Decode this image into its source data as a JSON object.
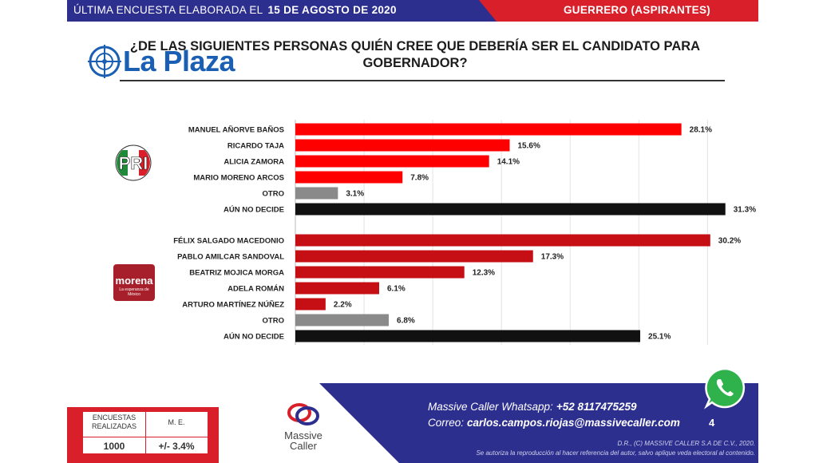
{
  "header": {
    "prefix": "ÚLTIMA ENCUESTA ELABORADA EL",
    "date": "15 DE AGOSTO DE 2020",
    "region": "GUERRERO (ASPIRANTES)"
  },
  "question": "¿DE LAS SIGUIENTES PERSONAS QUIÉN CREE QUE DEBERÍA SER EL CANDIDATO PARA GOBERNADOR?",
  "watermark": "La Plaza",
  "colors": {
    "pri": "#ff0000",
    "morena": "#c50f14",
    "otro": "#8a8a8a",
    "undecided": "#111111"
  },
  "chart_data": [
    {
      "type": "bar",
      "orientation": "horizontal",
      "party": "PRI",
      "categories": [
        "MANUEL AÑORVE BAÑOS",
        "RICARDO TAJA",
        "ALICIA ZAMORA",
        "MARIO MORENO ARCOS",
        "OTRO",
        "AÚN NO DECIDE"
      ],
      "values": [
        28.1,
        15.6,
        14.1,
        7.8,
        3.1,
        31.3
      ],
      "labels": [
        "28.1%",
        "15.6%",
        "14.1%",
        "7.8%",
        "3.1%",
        "31.3%"
      ],
      "bar_colors": [
        "#ff0000",
        "#ff0000",
        "#ff0000",
        "#ff0000",
        "#8a8a8a",
        "#111111"
      ],
      "xlim": [
        0,
        33
      ],
      "grid": true
    },
    {
      "type": "bar",
      "orientation": "horizontal",
      "party": "morena",
      "categories": [
        "FÉLIX SALGADO MACEDONIO",
        "PABLO AMILCAR SANDOVAL",
        "BEATRIZ MOJICA MORGA",
        "ADELA ROMÁN",
        "ARTURO MARTÍNEZ NÚÑEZ",
        "OTRO",
        "AÚN NO DECIDE"
      ],
      "values": [
        30.2,
        17.3,
        12.3,
        6.1,
        2.2,
        6.8,
        25.1
      ],
      "labels": [
        "30.2%",
        "17.3%",
        "12.3%",
        "6.1%",
        "2.2%",
        "6.8%",
        "25.1%"
      ],
      "bar_colors": [
        "#c50f14",
        "#c50f14",
        "#c50f14",
        "#c50f14",
        "#c50f14",
        "#8a8a8a",
        "#111111"
      ],
      "xlim": [
        0,
        33
      ],
      "grid": true
    }
  ],
  "logos": {
    "pri": "PRI",
    "morena": "morena",
    "morena_tagline": "La esperanza de México"
  },
  "stats": {
    "h1": "ENCUESTAS REALIZADAS",
    "h2": "M. E.",
    "v1": "1000",
    "v2": "+/- 3.4%"
  },
  "brand": {
    "name1": "Massive",
    "name2": "Caller"
  },
  "footer": {
    "wa_label": "Massive Caller Whatsapp:",
    "wa_number": "+52 8117475259",
    "mail_label": "Correo:",
    "mail": "carlos.campos.riojas@massivecaller.com",
    "page": "4",
    "copyright": "D.R., (C) MASSIVE CALLER S.A DE C.V., 2020.",
    "notice": "Se autoriza la reproducción al hacer referencia del autor, salvo aplique veda electoral al contenido."
  }
}
